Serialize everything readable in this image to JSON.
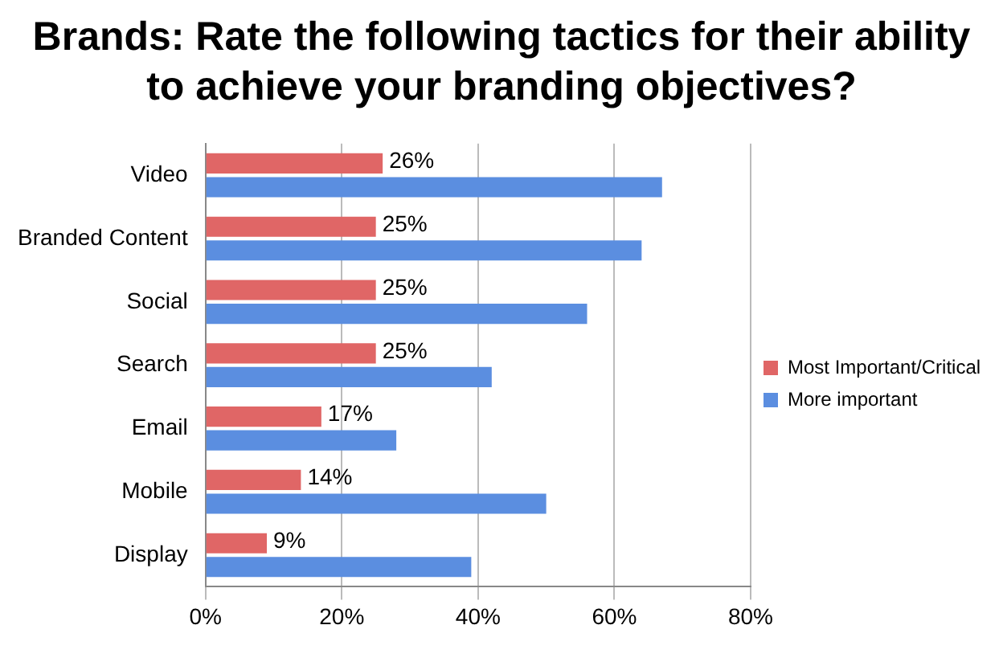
{
  "chart_data": {
    "type": "bar",
    "orientation": "horizontal",
    "title": "Brands: Rate the following tactics for their ability to achieve your branding objectives?",
    "categories": [
      "Video",
      "Branded Content",
      "Social",
      "Search",
      "Email",
      "Mobile",
      "Display"
    ],
    "series": [
      {
        "name": "Most Important/Critical",
        "color": "#e06666",
        "values": [
          26,
          25,
          25,
          25,
          17,
          14,
          9
        ],
        "value_labels": [
          "26%",
          "25%",
          "25%",
          "25%",
          "17%",
          "14%",
          "9%"
        ]
      },
      {
        "name": "More important",
        "color": "#5b8ee0",
        "values": [
          67,
          64,
          56,
          42,
          28,
          50,
          39
        ]
      }
    ],
    "xlim": [
      0,
      80
    ],
    "xticks": [
      {
        "value": 0,
        "label": "0%"
      },
      {
        "value": 20,
        "label": "20%"
      },
      {
        "value": 40,
        "label": "40%"
      },
      {
        "value": 60,
        "label": "60%"
      },
      {
        "value": 80,
        "label": "80%"
      }
    ],
    "grid": "x",
    "legend": "right"
  }
}
